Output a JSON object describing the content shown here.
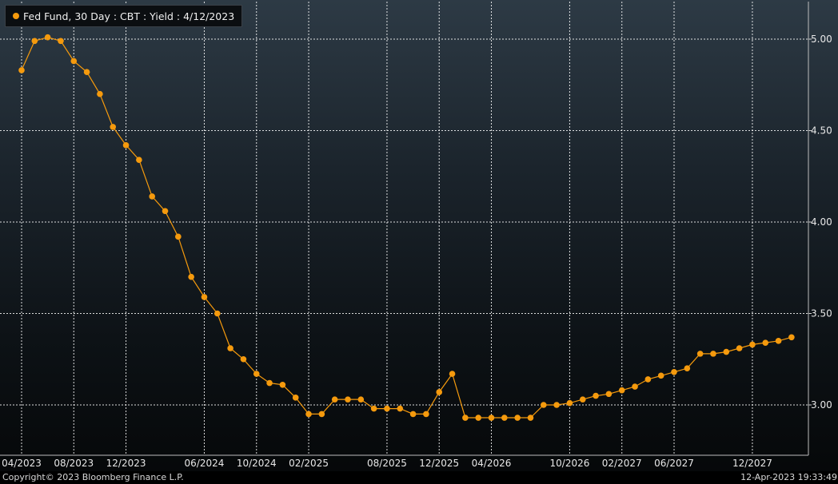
{
  "legend": {
    "label": "Fed Fund, 30 Day : CBT : Yield : 4/12/2023"
  },
  "footer": {
    "copyright": "Copyright© 2023 Bloomberg Finance L.P.",
    "timestamp": "12-Apr-2023 19:33:49"
  },
  "colors": {
    "series": "#f59a0d",
    "grid": "#ffffff",
    "background_top": "#2d3a45",
    "background_bottom": "#050708"
  },
  "chart_data": {
    "type": "line",
    "title": "",
    "xlabel": "",
    "ylabel": "",
    "grid": true,
    "legend_position": "top-left",
    "y_axis_position": "right",
    "ylim": [
      2.74,
      5.12
    ],
    "yticks": [
      3.0,
      3.5,
      4.0,
      4.5,
      5.0
    ],
    "ytick_labels": [
      "3.00",
      "3.50",
      "4.00",
      "4.50",
      "5.00"
    ],
    "xticks": [
      "04/2023",
      "08/2023",
      "12/2023",
      "06/2024",
      "10/2024",
      "02/2025",
      "08/2025",
      "12/2025",
      "04/2026",
      "10/2026",
      "02/2027",
      "06/2027",
      "12/2027"
    ],
    "xtick_month_index": [
      0,
      4,
      8,
      14,
      18,
      22,
      28,
      32,
      36,
      42,
      46,
      50,
      56
    ],
    "x_month_start": "04/2023",
    "series": [
      {
        "name": "Fed Fund, 30 Day : CBT : Yield : 4/12/2023",
        "x": [
          "04/2023",
          "05/2023",
          "06/2023",
          "07/2023",
          "08/2023",
          "09/2023",
          "10/2023",
          "11/2023",
          "12/2023",
          "01/2024",
          "02/2024",
          "03/2024",
          "04/2024",
          "05/2024",
          "06/2024",
          "07/2024",
          "08/2024",
          "09/2024",
          "10/2024",
          "11/2024",
          "12/2024",
          "01/2025",
          "02/2025",
          "03/2025",
          "04/2025",
          "05/2025",
          "06/2025",
          "07/2025",
          "08/2025",
          "09/2025",
          "10/2025",
          "11/2025",
          "12/2025",
          "01/2026",
          "02/2026",
          "03/2026",
          "04/2026",
          "05/2026",
          "06/2026",
          "07/2026",
          "08/2026",
          "09/2026",
          "10/2026",
          "11/2026",
          "12/2026",
          "01/2027",
          "02/2027",
          "03/2027",
          "04/2027",
          "05/2027",
          "06/2027",
          "07/2027",
          "08/2027",
          "09/2027",
          "10/2027",
          "11/2027",
          "12/2027",
          "01/2028",
          "02/2028",
          "03/2028"
        ],
        "values": [
          4.83,
          4.99,
          5.01,
          4.99,
          4.88,
          4.82,
          4.7,
          4.52,
          4.42,
          4.34,
          4.14,
          4.06,
          3.92,
          3.7,
          3.59,
          3.5,
          3.31,
          3.25,
          3.17,
          3.12,
          3.11,
          3.04,
          2.95,
          2.95,
          3.03,
          3.03,
          3.03,
          2.98,
          2.98,
          2.98,
          2.95,
          2.95,
          3.07,
          3.17,
          2.93,
          2.93,
          2.93,
          2.93,
          2.93,
          2.93,
          3.0,
          3.0,
          3.01,
          3.03,
          3.05,
          3.06,
          3.08,
          3.1,
          3.14,
          3.16,
          3.18,
          3.2,
          3.28,
          3.28,
          3.29,
          3.31,
          3.33,
          3.34,
          3.35,
          3.37
        ]
      }
    ]
  }
}
